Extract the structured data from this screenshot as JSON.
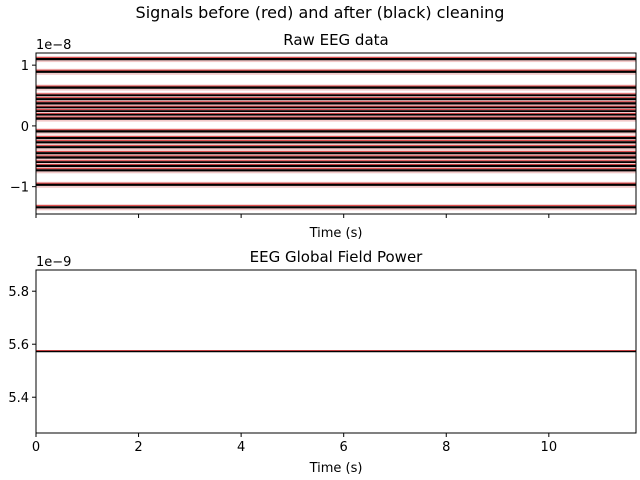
{
  "figure_title": "Signals before (red) and after (black) cleaning",
  "colors": {
    "before": "#d62728",
    "after": "#000000",
    "raw_before_band": "#f2c9c9"
  },
  "chart_data": [
    {
      "type": "line",
      "title": "Raw EEG data",
      "xlabel": "Time (s)",
      "ylabel": "",
      "offset_text": "1e−8",
      "xlim": [
        0,
        11.7
      ],
      "ylim": [
        -1.45,
        1.2
      ],
      "scale": 1e-08,
      "x_tick_labels_visible": false,
      "xticks": [
        0,
        2,
        4,
        6,
        8,
        10
      ],
      "yticks": [
        {
          "value": 1,
          "label": "1"
        },
        {
          "value": 0,
          "label": "0"
        },
        {
          "value": -1,
          "label": "−1"
        }
      ],
      "grid": false,
      "legend": "none",
      "series": [
        {
          "values_1e-8": [
            1.1,
            0.89,
            0.63,
            0.5,
            0.44,
            0.37,
            0.3,
            0.24,
            0.18,
            0.12,
            -0.09,
            -0.2,
            -0.27,
            -0.35,
            -0.45,
            -0.52,
            -0.6,
            -0.66,
            -0.73,
            -0.97,
            -1.34
          ]
        }
      ]
    },
    {
      "type": "line",
      "title": "EEG Global Field Power",
      "xlabel": "Time (s)",
      "ylabel": "",
      "offset_text": "1e−9",
      "xlim": [
        0,
        11.7
      ],
      "ylim": [
        5.265,
        5.88
      ],
      "scale": 1e-09,
      "xticks": [
        {
          "value": 0,
          "label": "0"
        },
        {
          "value": 2,
          "label": "2"
        },
        {
          "value": 4,
          "label": "4"
        },
        {
          "value": 6,
          "label": "6"
        },
        {
          "value": 8,
          "label": "8"
        },
        {
          "value": 10,
          "label": "10"
        }
      ],
      "yticks": [
        {
          "value": 5.8,
          "label": "5.8"
        },
        {
          "value": 5.6,
          "label": "5.6"
        },
        {
          "value": 5.4,
          "label": "5.4"
        }
      ],
      "grid": false,
      "legend": "none",
      "series": [
        {
          "color_role": "before",
          "x": [
            0,
            11.7
          ],
          "values_1e-9": [
            5.575,
            5.575
          ]
        },
        {
          "color_role": "after",
          "x": [
            0,
            11.7
          ],
          "values_1e-9": [
            5.572,
            5.572
          ]
        }
      ]
    }
  ]
}
